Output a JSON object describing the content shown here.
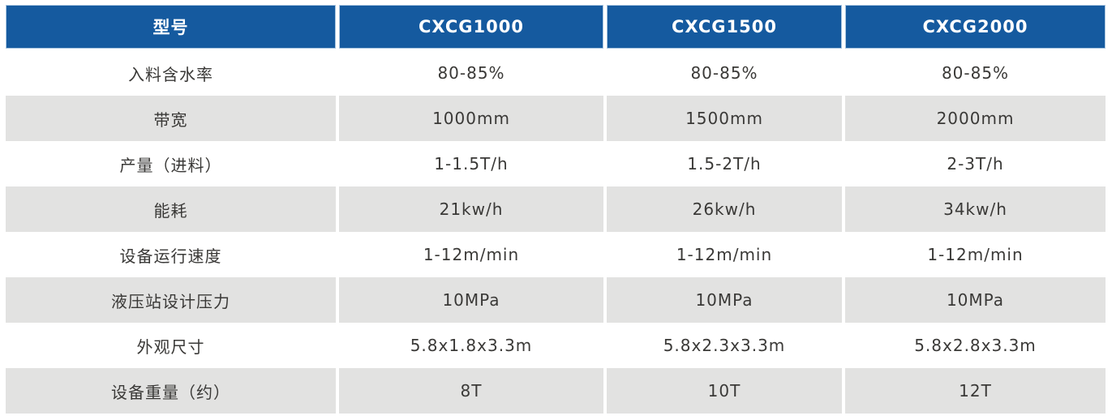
{
  "theme": {
    "header_bg": "#155A9F",
    "header_text": "#FFFFFF",
    "header_edge": "#A9C6E0",
    "row_alt_bg": "#E2E2E1",
    "row_bg": "#FFFFFF",
    "text": "#3A3937",
    "page_bg": "#FFFFFF"
  },
  "table": {
    "header": [
      "型号",
      "CXCG1000",
      "CXCG1500",
      "CXCG2000"
    ],
    "rows": [
      {
        "label": "入料含水率",
        "values": [
          "80-85%",
          "80-85%",
          "80-85%"
        ]
      },
      {
        "label": "带宽",
        "values": [
          "1000mm",
          "1500mm",
          "2000mm"
        ]
      },
      {
        "label": "产量（进料）",
        "values": [
          "1-1.5T/h",
          "1.5-2T/h",
          "2-3T/h"
        ]
      },
      {
        "label": "能耗",
        "values": [
          "21kw/h",
          "26kw/h",
          "34kw/h"
        ]
      },
      {
        "label": "设备运行速度",
        "values": [
          "1-12m/min",
          "1-12m/min",
          "1-12m/min"
        ]
      },
      {
        "label": "液压站设计压力",
        "values": [
          "10MPa",
          "10MPa",
          "10MPa"
        ]
      },
      {
        "label": "外观尺寸",
        "values": [
          "5.8x1.8x3.3m",
          "5.8x2.3x3.3m",
          "5.8x2.8x3.3m"
        ]
      },
      {
        "label": "设备重量（约）",
        "values": [
          "8T",
          "10T",
          "12T"
        ]
      }
    ]
  }
}
